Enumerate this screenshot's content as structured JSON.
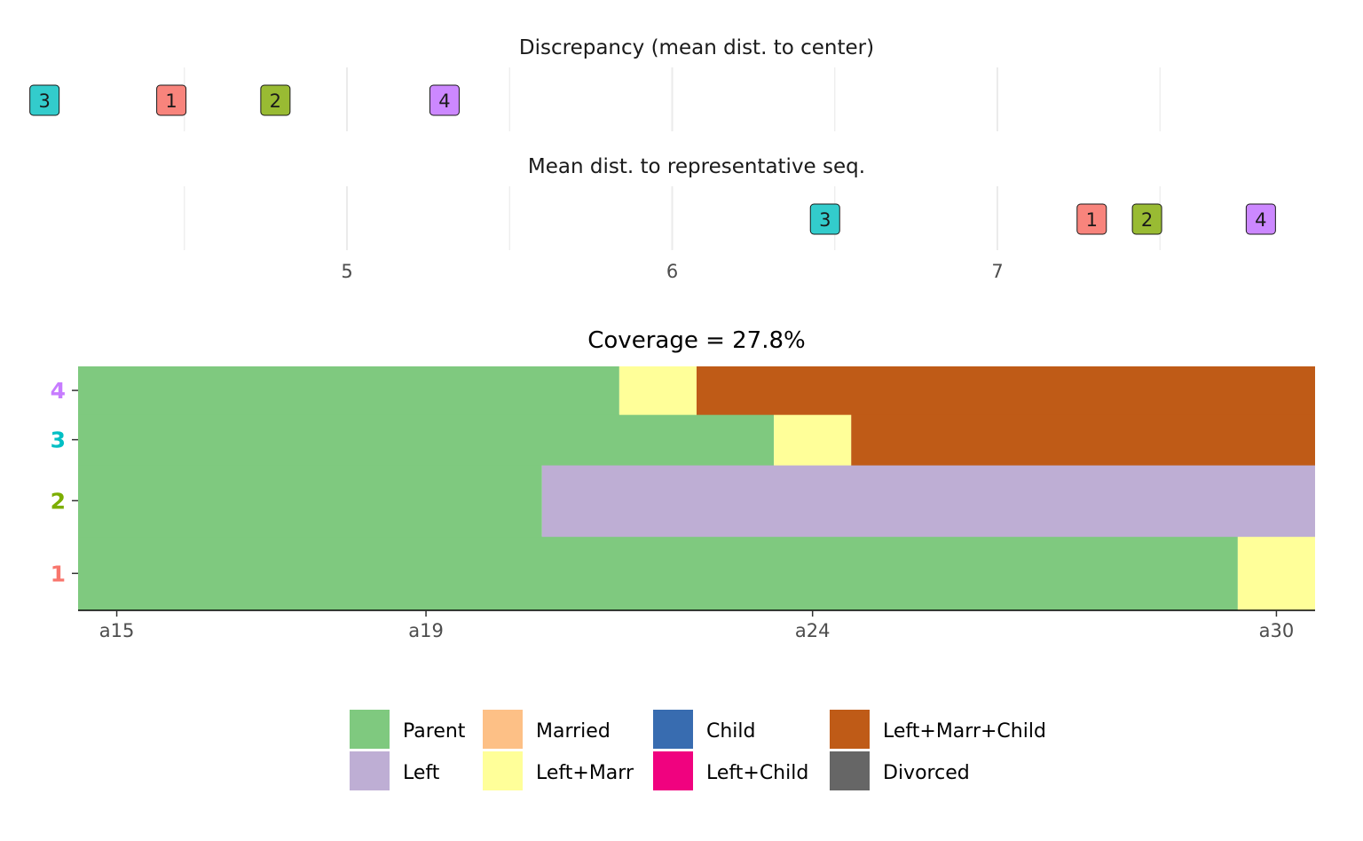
{
  "chart_data": [
    {
      "type": "scatter",
      "title": "Discrepancy (mean dist. to center)",
      "xlim": [
        4.0,
        7.9
      ],
      "points": [
        {
          "label": "3",
          "x": 4.07,
          "color": "#33CCCC"
        },
        {
          "label": "1",
          "x": 4.46,
          "color": "#F8847C"
        },
        {
          "label": "2",
          "x": 4.78,
          "color": "#99BB33"
        },
        {
          "label": "4",
          "x": 5.3,
          "color": "#CC88FF"
        }
      ]
    },
    {
      "type": "scatter",
      "title": "Mean dist. to representative seq.",
      "xlim": [
        4.0,
        7.9
      ],
      "x_ticks": [
        "5",
        "6",
        "7"
      ],
      "x_tick_values": [
        5,
        6,
        7
      ],
      "points": [
        {
          "label": "3",
          "x": 6.47,
          "color": "#33CCCC"
        },
        {
          "label": "1",
          "x": 7.29,
          "color": "#F8847C"
        },
        {
          "label": "2",
          "x": 7.46,
          "color": "#99BB33"
        },
        {
          "label": "4",
          "x": 7.81,
          "color": "#CC88FF"
        }
      ]
    },
    {
      "type": "bar",
      "subtype": "sequence-index-plot",
      "title": "Coverage = 27.8%",
      "ages_first": 15,
      "ages_last": 30,
      "x_ticks": [
        "a15",
        "a19",
        "a24",
        "a30"
      ],
      "x_tick_values": [
        15,
        19,
        24,
        30
      ],
      "rows": [
        {
          "label": "1",
          "label_color": "#F8766D",
          "weight": 3,
          "spells": [
            {
              "state": "Parent",
              "from": 15,
              "to": 29
            },
            {
              "state": "Left+Marr",
              "from": 30,
              "to": 30
            }
          ]
        },
        {
          "label": "2",
          "label_color": "#7CAE00",
          "weight": 2.9,
          "spells": [
            {
              "state": "Parent",
              "from": 15,
              "to": 20
            },
            {
              "state": "Left",
              "from": 21,
              "to": 30
            }
          ]
        },
        {
          "label": "3",
          "label_color": "#00BFC4",
          "weight": 2.05,
          "spells": [
            {
              "state": "Parent",
              "from": 15,
              "to": 23
            },
            {
              "state": "Left+Marr",
              "from": 24,
              "to": 24
            },
            {
              "state": "Left+Marr+Child",
              "from": 25,
              "to": 30
            }
          ]
        },
        {
          "label": "4",
          "label_color": "#C77CFF",
          "weight": 1.95,
          "spells": [
            {
              "state": "Parent",
              "from": 15,
              "to": 21
            },
            {
              "state": "Left+Marr",
              "from": 22,
              "to": 22
            },
            {
              "state": "Left+Marr+Child",
              "from": 23,
              "to": 30
            }
          ]
        }
      ],
      "legend_position": "bottom"
    }
  ],
  "legend": [
    {
      "label": "Parent",
      "color": "#7FC97F"
    },
    {
      "label": "Left",
      "color": "#BEAED4"
    },
    {
      "label": "Married",
      "color": "#FDC086"
    },
    {
      "label": "Left+Marr",
      "color": "#FFFF99"
    },
    {
      "label": "Child",
      "color": "#386CB0"
    },
    {
      "label": "Left+Child",
      "color": "#F0027F"
    },
    {
      "label": "Left+Marr+Child",
      "color": "#BF5B17"
    },
    {
      "label": "Divorced",
      "color": "#666666"
    }
  ]
}
